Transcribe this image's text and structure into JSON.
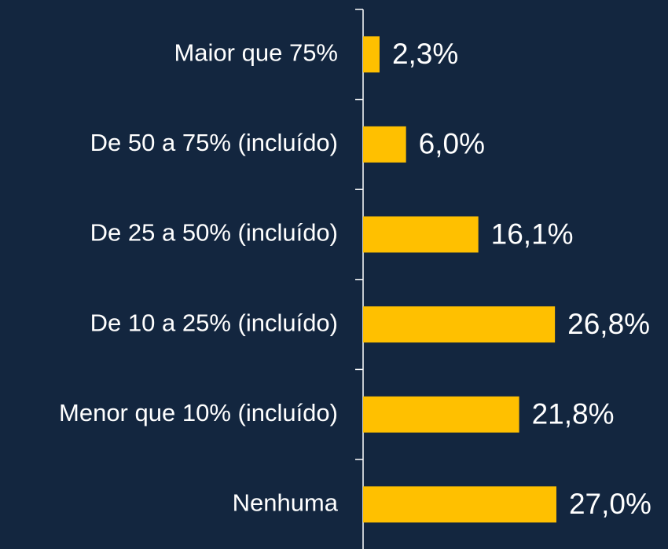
{
  "chart_data": {
    "type": "barh",
    "categories": [
      "Maior que 75%",
      "De 50 a 75% (incluído)",
      "De 25 a 50% (incluído)",
      "De 10 a 25% (incluído)",
      "Menor que 10% (incluído)",
      "Nenhuma"
    ],
    "values": [
      2.3,
      6.0,
      16.1,
      26.8,
      21.8,
      27.0
    ],
    "value_labels": [
      "2,3%",
      "6,0%",
      "16,1%",
      "26,8%",
      "21,8%",
      "27,0%"
    ],
    "color": "#ffc000"
  }
}
